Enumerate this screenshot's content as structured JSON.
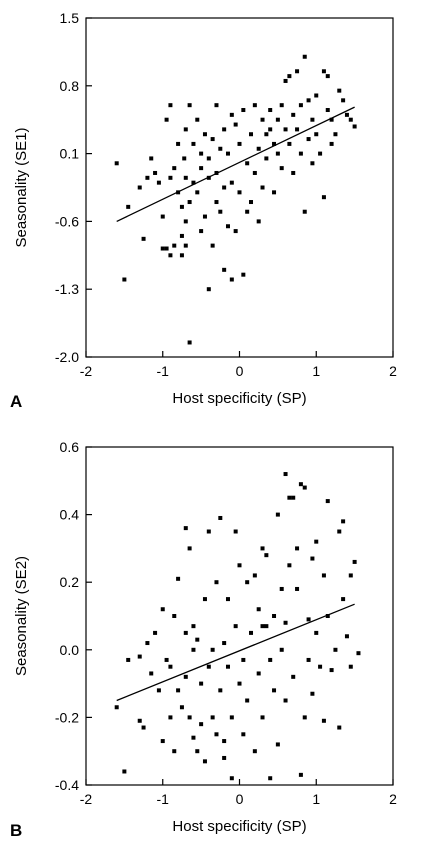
{
  "chart_data": [
    {
      "type": "scatter",
      "panel_label": "A",
      "xlabel": "Host specificity (SP)",
      "ylabel": "Seasonality (SE1)",
      "xlim": [
        -2,
        2
      ],
      "ylim": [
        -2.0,
        1.5
      ],
      "xticks": [
        "-2",
        "-1",
        "0",
        "1",
        "2"
      ],
      "yticks": [
        "1.5",
        "0.8",
        "0.1",
        "-0.6",
        "-1.3",
        "-2.0"
      ],
      "fit_line": {
        "x": [
          -1.6,
          1.5
        ],
        "y": [
          -0.6,
          0.58
        ]
      },
      "points": [
        [
          -1.6,
          0.0
        ],
        [
          -1.5,
          -1.2
        ],
        [
          -1.45,
          -0.45
        ],
        [
          -1.3,
          -0.25
        ],
        [
          -1.25,
          -0.78
        ],
        [
          -1.2,
          -0.15
        ],
        [
          -1.15,
          0.05
        ],
        [
          -1.1,
          -0.1
        ],
        [
          -1.05,
          -0.2
        ],
        [
          -1.0,
          -0.55
        ],
        [
          -1.0,
          -0.88
        ],
        [
          -0.95,
          -0.88
        ],
        [
          -0.95,
          0.45
        ],
        [
          -0.9,
          -0.15
        ],
        [
          -0.9,
          -0.95
        ],
        [
          -0.85,
          -0.85
        ],
        [
          -0.85,
          -0.05
        ],
        [
          -0.8,
          -0.3
        ],
        [
          -0.8,
          0.2
        ],
        [
          -0.75,
          -0.95
        ],
        [
          -0.75,
          -0.75
        ],
        [
          -0.75,
          -0.45
        ],
        [
          -0.7,
          -0.6
        ],
        [
          -0.7,
          -0.15
        ],
        [
          -0.7,
          -0.85
        ],
        [
          -0.72,
          0.05
        ],
        [
          -0.7,
          0.35
        ],
        [
          -0.65,
          -0.4
        ],
        [
          -0.65,
          0.6
        ],
        [
          -0.6,
          -0.2
        ],
        [
          -0.6,
          0.2
        ],
        [
          -0.55,
          -0.3
        ],
        [
          -0.55,
          0.45
        ],
        [
          -0.5,
          -0.7
        ],
        [
          -0.5,
          0.1
        ],
        [
          -0.5,
          -0.05
        ],
        [
          -0.45,
          0.3
        ],
        [
          -0.45,
          -0.55
        ],
        [
          -0.4,
          -0.15
        ],
        [
          -0.4,
          0.05
        ],
        [
          -0.4,
          -1.3
        ],
        [
          -0.35,
          -0.85
        ],
        [
          -0.35,
          0.25
        ],
        [
          -0.3,
          -0.4
        ],
        [
          -0.3,
          0.6
        ],
        [
          -0.3,
          -0.1
        ],
        [
          -0.25,
          -0.5
        ],
        [
          -0.25,
          0.15
        ],
        [
          -0.2,
          -1.1
        ],
        [
          -0.2,
          0.35
        ],
        [
          -0.2,
          -0.25
        ],
        [
          -0.15,
          -0.65
        ],
        [
          -0.15,
          0.1
        ],
        [
          -0.1,
          0.5
        ],
        [
          -0.1,
          -1.2
        ],
        [
          -0.1,
          -0.2
        ],
        [
          -0.05,
          -0.7
        ],
        [
          -0.05,
          0.4
        ],
        [
          0.0,
          -0.3
        ],
        [
          0.0,
          0.2
        ],
        [
          0.05,
          -1.15
        ],
        [
          0.05,
          0.55
        ],
        [
          0.1,
          -0.5
        ],
        [
          0.1,
          0.0
        ],
        [
          0.15,
          0.3
        ],
        [
          0.15,
          -0.4
        ],
        [
          0.2,
          0.6
        ],
        [
          0.2,
          -0.1
        ],
        [
          0.25,
          0.15
        ],
        [
          0.25,
          -0.6
        ],
        [
          0.3,
          0.45
        ],
        [
          0.3,
          -0.25
        ],
        [
          0.35,
          0.3
        ],
        [
          0.35,
          0.05
        ],
        [
          0.4,
          0.55
        ],
        [
          0.45,
          -0.3
        ],
        [
          0.45,
          0.2
        ],
        [
          0.5,
          0.45
        ],
        [
          0.5,
          0.1
        ],
        [
          0.55,
          -0.05
        ],
        [
          0.55,
          0.6
        ],
        [
          0.6,
          0.35
        ],
        [
          0.6,
          0.85
        ],
        [
          0.65,
          0.9
        ],
        [
          0.65,
          0.2
        ],
        [
          0.7,
          0.5
        ],
        [
          0.7,
          -0.1
        ],
        [
          0.75,
          0.95
        ],
        [
          0.75,
          0.35
        ],
        [
          0.8,
          0.6
        ],
        [
          0.8,
          0.1
        ],
        [
          0.85,
          1.1
        ],
        [
          0.85,
          -0.5
        ],
        [
          0.9,
          0.65
        ],
        [
          0.9,
          0.25
        ],
        [
          0.95,
          0.0
        ],
        [
          0.95,
          0.45
        ],
        [
          1.0,
          0.3
        ],
        [
          1.0,
          0.7
        ],
        [
          1.05,
          0.1
        ],
        [
          1.1,
          0.95
        ],
        [
          1.1,
          -0.35
        ],
        [
          1.15,
          0.9
        ],
        [
          1.15,
          0.55
        ],
        [
          1.2,
          0.45
        ],
        [
          1.25,
          0.3
        ],
        [
          1.3,
          0.75
        ],
        [
          1.35,
          0.65
        ],
        [
          1.4,
          0.5
        ],
        [
          1.45,
          0.45
        ],
        [
          1.5,
          0.38
        ],
        [
          1.2,
          0.2
        ],
        [
          0.4,
          0.35
        ],
        [
          -0.9,
          0.6
        ],
        [
          -0.65,
          -1.85
        ]
      ]
    },
    {
      "type": "scatter",
      "panel_label": "B",
      "xlabel": "Host specificity (SP)",
      "ylabel": "Seasonality (SE2)",
      "xlim": [
        -2,
        2
      ],
      "ylim": [
        -0.4,
        0.6
      ],
      "xticks": [
        "-2",
        "-1",
        "0",
        "1",
        "2"
      ],
      "yticks": [
        "0.6",
        "0.4",
        "0.2",
        "0.0",
        "-0.2",
        "-0.4"
      ],
      "fit_line": {
        "x": [
          -1.6,
          1.5
        ],
        "y": [
          -0.15,
          0.135
        ]
      },
      "points": [
        [
          -1.6,
          -0.17
        ],
        [
          -1.5,
          -0.36
        ],
        [
          -1.45,
          -0.03
        ],
        [
          -1.3,
          -0.02
        ],
        [
          -1.3,
          -0.21
        ],
        [
          -1.25,
          -0.23
        ],
        [
          -1.2,
          0.02
        ],
        [
          -1.15,
          -0.07
        ],
        [
          -1.1,
          0.05
        ],
        [
          -1.05,
          -0.12
        ],
        [
          -1.0,
          -0.27
        ],
        [
          -1.0,
          0.12
        ],
        [
          -0.95,
          -0.03
        ],
        [
          -0.9,
          -0.05
        ],
        [
          -0.9,
          -0.2
        ],
        [
          -0.85,
          -0.3
        ],
        [
          -0.85,
          0.1
        ],
        [
          -0.8,
          0.21
        ],
        [
          -0.8,
          -0.12
        ],
        [
          -0.75,
          -0.17
        ],
        [
          -0.7,
          0.36
        ],
        [
          -0.7,
          0.05
        ],
        [
          -0.7,
          -0.08
        ],
        [
          -0.65,
          -0.2
        ],
        [
          -0.65,
          0.3
        ],
        [
          -0.6,
          -0.26
        ],
        [
          -0.6,
          0.07
        ],
        [
          -0.55,
          -0.3
        ],
        [
          -0.55,
          0.03
        ],
        [
          -0.5,
          -0.22
        ],
        [
          -0.5,
          -0.1
        ],
        [
          -0.45,
          0.15
        ],
        [
          -0.45,
          -0.33
        ],
        [
          -0.4,
          0.35
        ],
        [
          -0.4,
          -0.05
        ],
        [
          -0.35,
          -0.2
        ],
        [
          -0.35,
          0.0
        ],
        [
          -0.3,
          0.2
        ],
        [
          -0.3,
          -0.25
        ],
        [
          -0.25,
          0.39
        ],
        [
          -0.25,
          -0.12
        ],
        [
          -0.2,
          -0.27
        ],
        [
          -0.2,
          0.02
        ],
        [
          -0.15,
          -0.05
        ],
        [
          -0.15,
          0.15
        ],
        [
          -0.1,
          -0.38
        ],
        [
          -0.1,
          -0.2
        ],
        [
          -0.05,
          0.35
        ],
        [
          -0.05,
          0.07
        ],
        [
          0.0,
          -0.1
        ],
        [
          0.0,
          0.25
        ],
        [
          0.05,
          -0.25
        ],
        [
          0.05,
          -0.03
        ],
        [
          0.1,
          0.2
        ],
        [
          0.1,
          -0.15
        ],
        [
          0.15,
          0.05
        ],
        [
          0.2,
          -0.3
        ],
        [
          0.2,
          0.22
        ],
        [
          0.25,
          0.12
        ],
        [
          0.25,
          -0.07
        ],
        [
          0.3,
          0.3
        ],
        [
          0.3,
          -0.2
        ],
        [
          0.35,
          0.28
        ],
        [
          0.35,
          0.07
        ],
        [
          0.4,
          -0.03
        ],
        [
          0.4,
          -0.38
        ],
        [
          0.45,
          0.1
        ],
        [
          0.45,
          -0.12
        ],
        [
          0.5,
          0.4
        ],
        [
          0.5,
          -0.28
        ],
        [
          0.55,
          0.18
        ],
        [
          0.55,
          0.0
        ],
        [
          0.6,
          0.52
        ],
        [
          0.6,
          -0.15
        ],
        [
          0.65,
          0.45
        ],
        [
          0.65,
          0.25
        ],
        [
          0.7,
          0.45
        ],
        [
          0.7,
          -0.08
        ],
        [
          0.75,
          0.18
        ],
        [
          0.75,
          0.3
        ],
        [
          0.8,
          0.49
        ],
        [
          0.8,
          -0.37
        ],
        [
          0.85,
          0.48
        ],
        [
          0.85,
          -0.2
        ],
        [
          0.9,
          0.09
        ],
        [
          0.9,
          -0.03
        ],
        [
          0.95,
          0.27
        ],
        [
          0.95,
          -0.13
        ],
        [
          1.0,
          0.05
        ],
        [
          1.05,
          -0.05
        ],
        [
          1.1,
          0.22
        ],
        [
          1.1,
          -0.21
        ],
        [
          1.15,
          0.44
        ],
        [
          1.15,
          0.1
        ],
        [
          1.2,
          -0.06
        ],
        [
          1.25,
          0.0
        ],
        [
          1.3,
          0.35
        ],
        [
          1.3,
          -0.23
        ],
        [
          1.35,
          0.38
        ],
        [
          1.35,
          0.15
        ],
        [
          1.4,
          0.04
        ],
        [
          1.45,
          0.22
        ],
        [
          1.45,
          -0.05
        ],
        [
          1.5,
          0.26
        ],
        [
          1.55,
          -0.01
        ],
        [
          0.3,
          0.07
        ],
        [
          -0.6,
          0.0
        ],
        [
          1.0,
          0.32
        ],
        [
          -0.2,
          -0.32
        ],
        [
          0.6,
          0.08
        ]
      ]
    }
  ]
}
